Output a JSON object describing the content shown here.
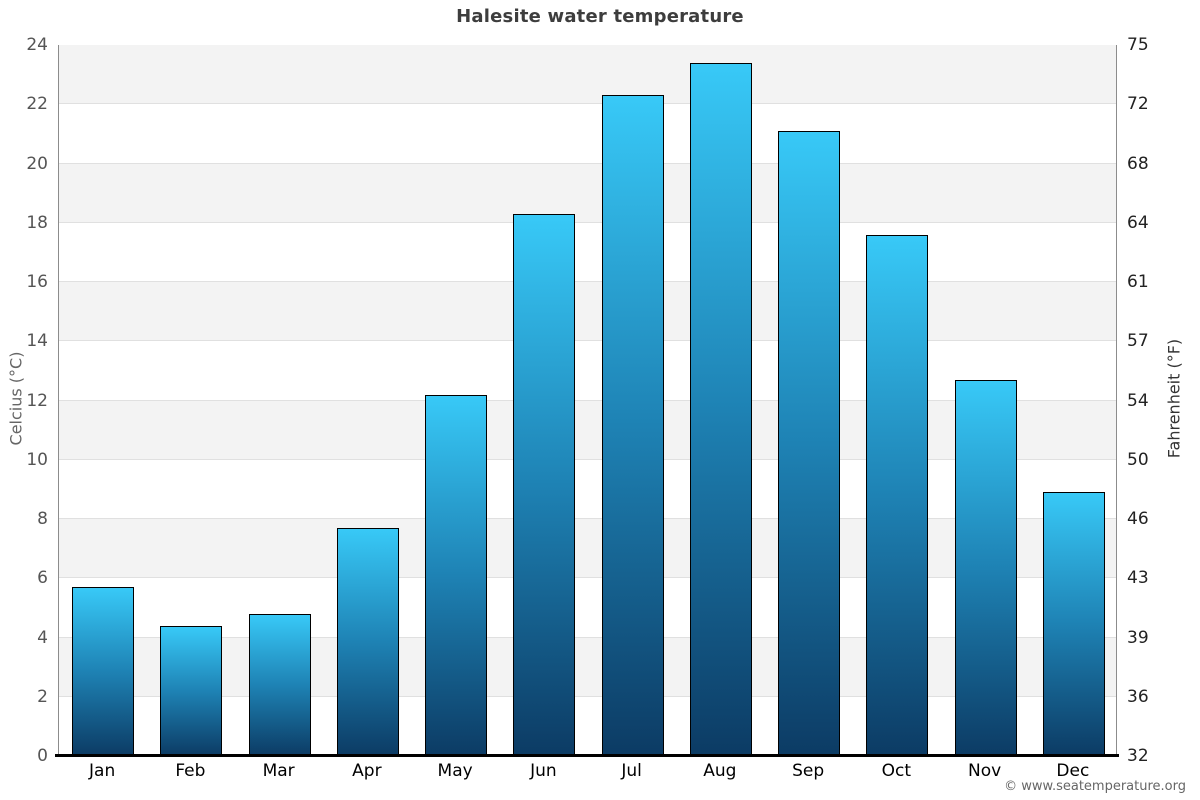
{
  "footer": "© www.seatemperature.org",
  "chart_data": {
    "type": "bar",
    "title": "Halesite water temperature",
    "categories": [
      "Jan",
      "Feb",
      "Mar",
      "Apr",
      "May",
      "Jun",
      "Jul",
      "Aug",
      "Sep",
      "Oct",
      "Nov",
      "Dec"
    ],
    "values": [
      5.7,
      4.4,
      4.8,
      7.7,
      12.2,
      18.3,
      22.3,
      23.4,
      21.1,
      17.6,
      12.7,
      8.9
    ],
    "unit": "°C",
    "ylabel_left": "Celcius (°C)",
    "ylabel_right": "Fahrenheit (°F)",
    "ylim_left_celsius": [
      0,
      24
    ],
    "ylim_right_fahrenheit": [
      32,
      75.2
    ],
    "left_ticks": [
      24,
      22,
      20,
      18,
      16,
      14,
      12,
      10,
      8,
      6,
      4,
      2,
      0
    ],
    "right_ticks": [
      75,
      72,
      68,
      64,
      61,
      57,
      54,
      50,
      46,
      43,
      39,
      36,
      32
    ],
    "legend": "none",
    "grid": "alternating-horizontal-bands",
    "colors": {
      "bar_top": "#38c9f7",
      "bar_mid": "#1e82b4",
      "bar_bottom": "#0c3b64",
      "bar_border": "#000000",
      "band_gray": "#f3f3f3",
      "band_white": "#ffffff",
      "gridline": "#e0e0e0",
      "axis_line": "#000000",
      "spine": "#8c8c8c",
      "title_color": "#3d3d3d",
      "tick_label_left": "#555555",
      "tick_label_right": "#222222",
      "month_label": "#000000",
      "footer_color": "#666666"
    }
  }
}
